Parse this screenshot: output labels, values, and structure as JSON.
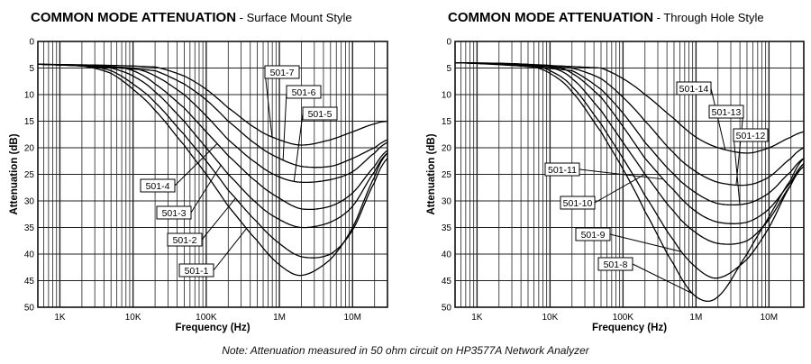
{
  "note": "Note: Attenuation measured in 50 ohm circuit on HP3577A Network Analyzer",
  "chart_data": [
    {
      "type": "line",
      "title": "COMMON MODE ATTENUATION",
      "subtitle": "- Surface Mount Style",
      "xlabel": "Frequency (Hz)",
      "ylabel": "Attenuation (dB)",
      "x_scale": "log",
      "xlim": [
        500,
        30000000
      ],
      "ylim": [
        0,
        50
      ],
      "y_inverted": true,
      "grid": true,
      "x_ticks": [
        {
          "value": 1000,
          "label": "1K"
        },
        {
          "value": 10000,
          "label": "10K"
        },
        {
          "value": 100000,
          "label": "100K"
        },
        {
          "value": 1000000,
          "label": "1M"
        },
        {
          "value": 10000000,
          "label": "10M"
        }
      ],
      "y_ticks": [
        0,
        5,
        10,
        15,
        20,
        25,
        30,
        35,
        40,
        45,
        50
      ],
      "series": [
        {
          "name": "501-1",
          "x": [
            500,
            2000,
            5000,
            10000,
            20000,
            50000,
            100000,
            200000,
            500000,
            1000000,
            2000000,
            5000000,
            10000000,
            20000000,
            30000000
          ],
          "y": [
            4.3,
            4.6,
            6,
            9,
            13,
            19.5,
            25,
            31,
            37.5,
            42,
            44,
            41,
            35,
            25.5,
            21
          ]
        },
        {
          "name": "501-2",
          "x": [
            500,
            2000,
            5000,
            10000,
            20000,
            50000,
            100000,
            200000,
            500000,
            1000000,
            2000000,
            5000000,
            10000000,
            20000000,
            30000000
          ],
          "y": [
            4.3,
            4.5,
            5.5,
            8,
            11.5,
            17.5,
            22.5,
            28,
            34,
            38,
            40.5,
            40,
            35.5,
            26.5,
            22
          ]
        },
        {
          "name": "501-3",
          "x": [
            500,
            5000,
            10000,
            20000,
            50000,
            100000,
            200000,
            500000,
            1000000,
            2000000,
            5000000,
            10000000,
            20000000,
            30000000
          ],
          "y": [
            4.3,
            5,
            6.5,
            9.5,
            15,
            20,
            25,
            30.5,
            33.5,
            35,
            34,
            31,
            24.5,
            21
          ]
        },
        {
          "name": "501-4",
          "x": [
            500,
            5000,
            10000,
            20000,
            50000,
            100000,
            200000,
            500000,
            1000000,
            2000000,
            5000000,
            10000000,
            20000000,
            30000000
          ],
          "y": [
            4.3,
            4.7,
            5.5,
            8,
            12.5,
            17,
            21.5,
            26.5,
            29.5,
            31.5,
            31,
            28.5,
            23.5,
            20.5
          ]
        },
        {
          "name": "501-5",
          "x": [
            500,
            10000,
            20000,
            50000,
            100000,
            200000,
            500000,
            1000000,
            2000000,
            5000000,
            10000000,
            20000000,
            30000000
          ],
          "y": [
            4.3,
            5,
            6.5,
            10,
            14,
            18.5,
            23,
            25.5,
            26.5,
            26,
            24.5,
            21,
            19
          ]
        },
        {
          "name": "501-6",
          "x": [
            500,
            20000,
            50000,
            100000,
            200000,
            500000,
            1000000,
            2000000,
            5000000,
            10000000,
            20000000,
            30000000
          ],
          "y": [
            4.3,
            5.5,
            8,
            11,
            15,
            19.5,
            22,
            23.5,
            23.5,
            22,
            20,
            18.5
          ]
        },
        {
          "name": "501-7",
          "x": [
            500,
            20000,
            50000,
            100000,
            200000,
            500000,
            1000000,
            2000000,
            5000000,
            10000000,
            20000000,
            30000000
          ],
          "y": [
            4.3,
            4.8,
            6.5,
            9,
            12.5,
            16.5,
            18.5,
            19.5,
            18.5,
            17,
            15.5,
            15
          ]
        }
      ],
      "legend": "none"
    },
    {
      "type": "line",
      "title": "COMMON MODE ATTENUATION",
      "subtitle": "- Through Hole Style",
      "xlabel": "Frequency (Hz)",
      "ylabel": "Attenuation (dB)",
      "x_scale": "log",
      "xlim": [
        500,
        30000000
      ],
      "ylim": [
        0,
        50
      ],
      "y_inverted": true,
      "grid": true,
      "x_ticks": [
        {
          "value": 1000,
          "label": "1K"
        },
        {
          "value": 10000,
          "label": "10K"
        },
        {
          "value": 100000,
          "label": "100K"
        },
        {
          "value": 1000000,
          "label": "1M"
        },
        {
          "value": 10000000,
          "label": "10M"
        }
      ],
      "y_ticks": [
        0,
        5,
        10,
        15,
        20,
        25,
        30,
        35,
        40,
        45,
        50
      ],
      "series": [
        {
          "name": "501-8",
          "x": [
            500,
            5000,
            10000,
            20000,
            50000,
            100000,
            200000,
            500000,
            1000000,
            2000000,
            5000000,
            10000000,
            20000000,
            30000000
          ],
          "y": [
            4,
            4.5,
            6,
            9.5,
            17,
            24,
            32,
            42,
            48,
            48,
            40,
            33,
            26,
            22
          ]
        },
        {
          "name": "501-9",
          "x": [
            500,
            5000,
            10000,
            20000,
            50000,
            100000,
            200000,
            500000,
            1000000,
            2000000,
            5000000,
            10000000,
            20000000,
            30000000
          ],
          "y": [
            4,
            4.3,
            5.5,
            8.5,
            15.5,
            22,
            29,
            37.5,
            42.5,
            44.5,
            41,
            35,
            27,
            23
          ]
        },
        {
          "name": "501-10",
          "x": [
            500,
            10000,
            20000,
            50000,
            100000,
            200000,
            500000,
            1000000,
            2000000,
            5000000,
            10000000,
            20000000,
            30000000
          ],
          "y": [
            4,
            4.8,
            7,
            13,
            19,
            25,
            32,
            36,
            38,
            37.5,
            33.5,
            27,
            23.5
          ]
        },
        {
          "name": "501-11",
          "x": [
            500,
            10000,
            20000,
            50000,
            100000,
            200000,
            500000,
            1000000,
            2000000,
            5000000,
            10000000,
            20000000,
            30000000
          ],
          "y": [
            4,
            4.5,
            6,
            10.5,
            16,
            22,
            28,
            32,
            34,
            34,
            31.5,
            26.5,
            23
          ]
        },
        {
          "name": "501-12",
          "x": [
            500,
            20000,
            50000,
            100000,
            200000,
            500000,
            1000000,
            2000000,
            5000000,
            10000000,
            20000000,
            30000000
          ],
          "y": [
            4,
            5.5,
            9,
            13.5,
            19,
            25,
            28.5,
            30.5,
            30.5,
            28.5,
            24.5,
            22
          ]
        },
        {
          "name": "501-13",
          "x": [
            500,
            20000,
            50000,
            100000,
            200000,
            500000,
            1000000,
            2000000,
            5000000,
            10000000,
            20000000,
            30000000
          ],
          "y": [
            4,
            5,
            7,
            10.5,
            15,
            21,
            24.5,
            26.5,
            27,
            25.5,
            22,
            20
          ]
        },
        {
          "name": "501-14",
          "x": [
            500,
            50000,
            100000,
            200000,
            500000,
            1000000,
            2000000,
            5000000,
            10000000,
            20000000,
            30000000
          ],
          "y": [
            4,
            5,
            7,
            10,
            14.5,
            18,
            20,
            21,
            20,
            18,
            17
          ]
        }
      ],
      "legend": "none"
    }
  ]
}
